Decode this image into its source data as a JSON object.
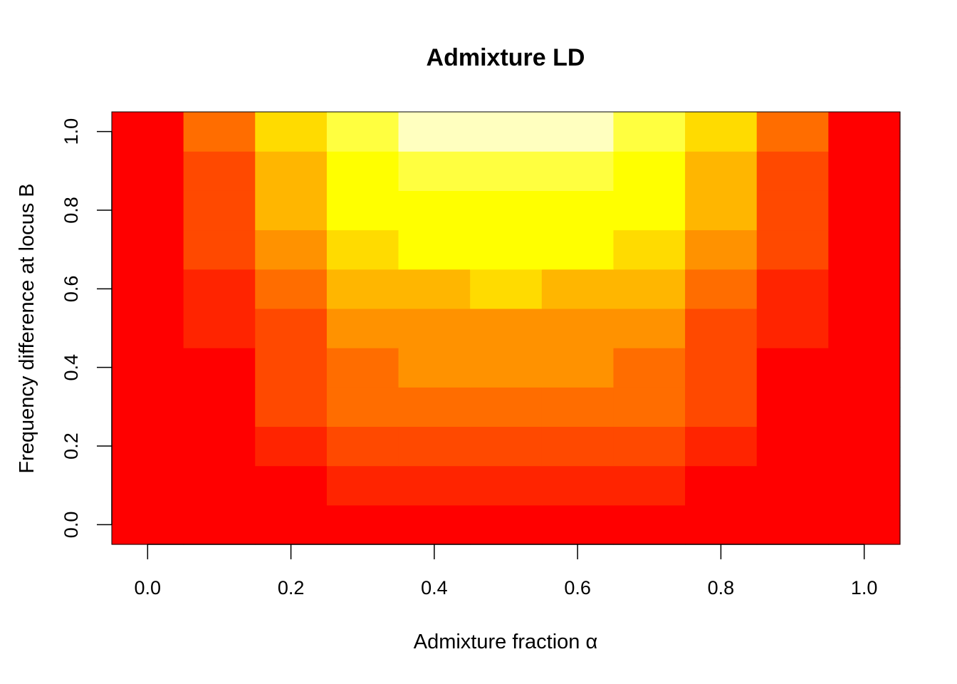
{
  "chart_data": {
    "type": "heatmap",
    "title": "Admixture LD",
    "xlabel": "Admixture fraction α",
    "ylabel": "Frequency difference at locus B",
    "x": [
      0.0,
      0.1,
      0.2,
      0.3,
      0.4,
      0.5,
      0.6,
      0.7,
      0.8,
      0.9,
      1.0
    ],
    "y": [
      0.0,
      0.1,
      0.2,
      0.3,
      0.4,
      0.5,
      0.6,
      0.7,
      0.8,
      0.9,
      1.0
    ],
    "xlim": [
      -0.05,
      1.05
    ],
    "ylim": [
      -0.05,
      1.05
    ],
    "x_ticks": [
      0.0,
      0.2,
      0.4,
      0.6,
      0.8,
      1.0
    ],
    "y_ticks": [
      0.0,
      0.2,
      0.4,
      0.6,
      0.8,
      1.0
    ],
    "x_tick_labels": [
      "0.0",
      "0.2",
      "0.4",
      "0.6",
      "0.8",
      "1.0"
    ],
    "y_tick_labels": [
      "0.0",
      "0.2",
      "0.4",
      "0.6",
      "0.8",
      "1.0"
    ],
    "palette": [
      "#FF0000",
      "#FF2400",
      "#FF4900",
      "#FF6D00",
      "#FF9200",
      "#FFB600",
      "#FFDB00",
      "#FFFF00",
      "#FFFF40",
      "#FFFFBF"
    ],
    "color_index": [
      [
        0,
        0,
        0,
        0,
        0,
        0,
        0,
        0,
        0,
        0,
        0
      ],
      [
        0,
        0,
        0,
        1,
        1,
        1,
        1,
        1,
        0,
        0,
        0
      ],
      [
        0,
        0,
        1,
        2,
        2,
        2,
        2,
        2,
        1,
        0,
        0
      ],
      [
        0,
        0,
        2,
        3,
        3,
        3,
        3,
        3,
        2,
        0,
        0
      ],
      [
        0,
        0,
        2,
        3,
        4,
        4,
        4,
        3,
        2,
        0,
        0
      ],
      [
        0,
        1,
        2,
        4,
        4,
        4,
        4,
        4,
        2,
        1,
        0
      ],
      [
        0,
        1,
        3,
        5,
        5,
        6,
        5,
        5,
        3,
        1,
        0
      ],
      [
        0,
        2,
        4,
        6,
        7,
        7,
        7,
        6,
        4,
        2,
        0
      ],
      [
        0,
        2,
        5,
        7,
        7,
        7,
        7,
        7,
        5,
        2,
        0
      ],
      [
        0,
        2,
        5,
        7,
        8,
        8,
        8,
        7,
        5,
        2,
        0
      ],
      [
        0,
        3,
        6,
        8,
        9,
        9,
        9,
        8,
        6,
        3,
        0
      ]
    ],
    "grid": false,
    "legend": "none"
  }
}
